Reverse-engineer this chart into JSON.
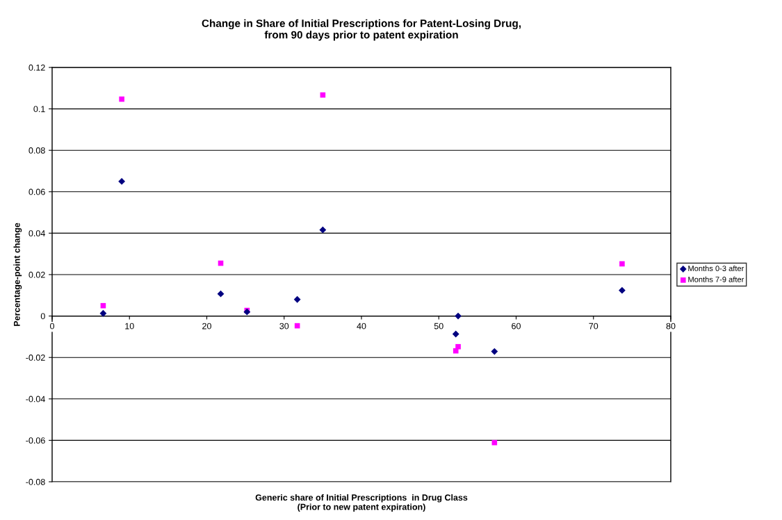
{
  "chart_data": {
    "type": "scatter",
    "title": "Change in Share of Initial Prescriptions for Patent-Losing Drug,\nfrom 90 days prior to patent expiration",
    "xlabel": "Generic share of Initial Prescriptions  in Drug Class\n(Prior to new patent expiration)",
    "ylabel": "Percentage-point change",
    "x": [
      6.6,
      9.0,
      21.8,
      25.2,
      31.7,
      35.0,
      52.2,
      52.5,
      57.2,
      73.7
    ],
    "series": [
      {
        "name": "Months 0-3 after",
        "color": "#000080",
        "marker": "diamond",
        "values": [
          0.0013,
          0.065,
          0.0107,
          0.002,
          0.008,
          0.0416,
          -0.0087,
          0.0,
          -0.0171,
          0.0124
        ]
      },
      {
        "name": "Months 7-9 after",
        "color": "#ff00ff",
        "marker": "square",
        "values": [
          0.005,
          0.1047,
          0.0255,
          0.0027,
          -0.0047,
          0.1067,
          -0.0168,
          -0.0148,
          -0.0611,
          0.0252
        ]
      }
    ],
    "xlim": [
      0,
      80
    ],
    "xticks": [
      0,
      10,
      20,
      30,
      40,
      50,
      60,
      70,
      80
    ],
    "ylim": [
      -0.08,
      0.12
    ],
    "yticks": [
      -0.08,
      -0.06,
      -0.04,
      -0.02,
      0,
      0.02,
      0.04,
      0.06,
      0.08,
      0.1,
      0.12
    ],
    "grid": "y",
    "legend": "right"
  }
}
